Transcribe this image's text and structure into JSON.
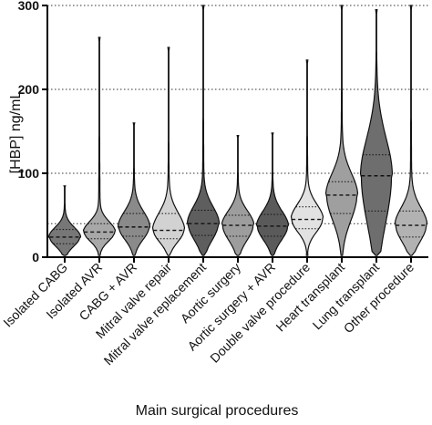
{
  "chart_data": {
    "type": "violin",
    "ylabel": "[HBP] ng/mL",
    "xlabel": "Main surgical procedures",
    "ylim": [
      0,
      300
    ],
    "yticks": [
      0,
      100,
      200,
      300
    ],
    "reference_lines": [
      40,
      100,
      200,
      300
    ],
    "grid": "horizontal dotted",
    "categories": [
      "Isolated CABG",
      "Isolated AVR",
      "CABG + AVR",
      "Mitral valve repair",
      "Mitral valve replacement",
      "Aortic surgery",
      "Aortic surgery + AVR",
      "Double valve procedure",
      "Heart transplant",
      "Lung transplant",
      "Other procedure"
    ],
    "series": [
      {
        "category": "Isolated CABG",
        "q1": 16,
        "median": 24,
        "q3": 33,
        "max": 85,
        "fill": "#777777"
      },
      {
        "category": "Isolated AVR",
        "q1": 22,
        "median": 30,
        "q3": 40,
        "max": 262,
        "fill": "#a8a8a8"
      },
      {
        "category": "CABG + AVR",
        "q1": 25,
        "median": 36,
        "q3": 52,
        "max": 160,
        "fill": "#8a8a8a"
      },
      {
        "category": "Mitral valve repair",
        "q1": 22,
        "median": 32,
        "q3": 52,
        "max": 250,
        "fill": "#d2d2d2"
      },
      {
        "category": "Mitral valve replacement",
        "q1": 26,
        "median": 40,
        "q3": 56,
        "max": 300,
        "fill": "#5e5e5e"
      },
      {
        "category": "Aortic surgery",
        "q1": 25,
        "median": 38,
        "q3": 50,
        "max": 145,
        "fill": "#9d9d9d"
      },
      {
        "category": "Aortic surgery + AVR",
        "q1": 25,
        "median": 37,
        "q3": 51,
        "max": 148,
        "fill": "#5a5a5a"
      },
      {
        "category": "Double valve procedure",
        "q1": 34,
        "median": 45,
        "q3": 60,
        "max": 235,
        "fill": "#e2e2e2"
      },
      {
        "category": "Heart transplant",
        "q1": 52,
        "median": 74,
        "q3": 90,
        "max": 300,
        "fill": "#9f9f9f"
      },
      {
        "category": "Lung transplant",
        "q1": 55,
        "median": 97,
        "q3": 122,
        "max": 295,
        "fill": "#6e6e6e"
      },
      {
        "category": "Other procedure",
        "q1": 24,
        "median": 38,
        "q3": 55,
        "max": 300,
        "fill": "#b2b2b2"
      }
    ]
  }
}
